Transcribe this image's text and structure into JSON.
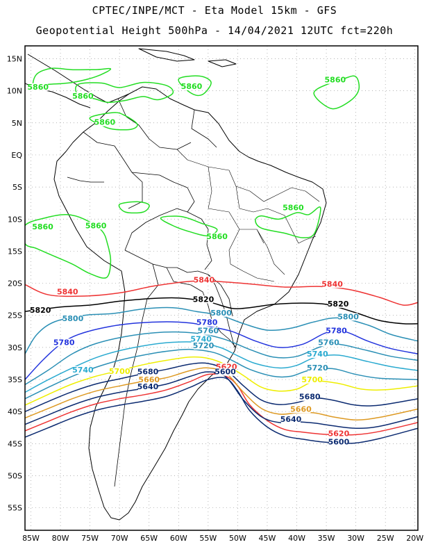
{
  "title": {
    "line1": "CPTEC/INPE/MCT -  Eta Model 15km - GFS",
    "line2": "Geopotential Height 500hPa - 14/04/2021 12UTC fct=220h"
  },
  "axes": {
    "lon_ticks": [
      "85W",
      "80W",
      "75W",
      "70W",
      "65W",
      "60W",
      "55W",
      "50W",
      "45W",
      "40W",
      "35W",
      "30W",
      "25W",
      "20W"
    ],
    "lat_ticks": [
      "15N",
      "10N",
      "5N",
      "EQ",
      "5S",
      "10S",
      "15S",
      "20S",
      "25S",
      "30S",
      "35S",
      "40S",
      "45S",
      "50S",
      "55S"
    ]
  },
  "contours": [
    {
      "value": "5860",
      "color": "#22dd22",
      "labels": [
        {
          "text": "5860",
          "lon": -83.8,
          "lat": 10.3
        },
        {
          "text": "5860",
          "lon": -76.2,
          "lat": 8.9
        },
        {
          "text": "5860",
          "lon": -72.5,
          "lat": 4.8
        },
        {
          "text": "5860",
          "lon": -57.8,
          "lat": 10.4
        },
        {
          "text": "5860",
          "lon": -33.5,
          "lat": 11.4
        },
        {
          "text": "5860",
          "lon": -83.0,
          "lat": -11.5
        },
        {
          "text": "5860",
          "lon": -74.0,
          "lat": -11.3
        },
        {
          "text": "5860",
          "lon": -53.5,
          "lat": -13.0
        },
        {
          "text": "5860",
          "lon": -40.6,
          "lat": -8.5
        }
      ]
    },
    {
      "value": "5840",
      "color": "#ee3333",
      "labels": [
        {
          "text": "5840",
          "lon": -78.8,
          "lat": -21.6
        },
        {
          "text": "5840",
          "lon": -55.7,
          "lat": -19.8
        },
        {
          "text": "5840",
          "lon": -34.0,
          "lat": -20.4
        }
      ]
    },
    {
      "value": "5820",
      "color": "#000000",
      "labels": [
        {
          "text": "5820",
          "lon": -83.4,
          "lat": -24.5
        },
        {
          "text": "5820",
          "lon": -55.8,
          "lat": -22.8
        },
        {
          "text": "5820",
          "lon": -33.0,
          "lat": -23.5
        }
      ]
    },
    {
      "value": "5800",
      "color": "#2a8fb5",
      "labels": [
        {
          "text": "5800",
          "lon": -77.9,
          "lat": -25.8
        },
        {
          "text": "5800",
          "lon": -52.8,
          "lat": -24.9
        },
        {
          "text": "5800",
          "lon": -31.3,
          "lat": -25.5
        }
      ]
    },
    {
      "value": "5780",
      "color": "#2233dd",
      "labels": [
        {
          "text": "5780",
          "lon": -79.4,
          "lat": -29.5
        },
        {
          "text": "5780",
          "lon": -55.2,
          "lat": -26.4
        },
        {
          "text": "5780",
          "lon": -33.3,
          "lat": -27.7
        }
      ]
    },
    {
      "value": "5760",
      "color": "#2a8fb5",
      "labels": [
        {
          "text": "5760",
          "lon": -55.0,
          "lat": -27.7
        },
        {
          "text": "5760",
          "lon": -34.6,
          "lat": -29.5
        }
      ]
    },
    {
      "value": "5740",
      "color": "#2aaad0",
      "labels": [
        {
          "text": "5740",
          "lon": -76.2,
          "lat": -33.8
        },
        {
          "text": "5740",
          "lon": -56.2,
          "lat": -29.0
        },
        {
          "text": "5740",
          "lon": -36.5,
          "lat": -31.3
        }
      ]
    },
    {
      "value": "5720",
      "color": "#2a8fb5",
      "labels": [
        {
          "text": "5720",
          "lon": -55.8,
          "lat": -30.0
        },
        {
          "text": "5720",
          "lon": -36.5,
          "lat": -33.5
        }
      ]
    },
    {
      "value": "5700",
      "color": "#eeee00",
      "labels": [
        {
          "text": "5700",
          "lon": -70.0,
          "lat": -34.0
        },
        {
          "text": "5700",
          "lon": -37.4,
          "lat": -35.3
        }
      ]
    },
    {
      "value": "5680",
      "color": "#0b2a70",
      "labels": [
        {
          "text": "5680",
          "lon": -65.2,
          "lat": -34.1
        },
        {
          "text": "5680",
          "lon": -37.8,
          "lat": -38.0
        }
      ]
    },
    {
      "value": "5660",
      "color": "#dd9922",
      "labels": [
        {
          "text": "5660",
          "lon": -65.0,
          "lat": -35.3
        },
        {
          "text": "5660",
          "lon": -39.3,
          "lat": -39.9
        }
      ]
    },
    {
      "value": "5640",
      "color": "#0b2a70",
      "labels": [
        {
          "text": "5640",
          "lon": -65.2,
          "lat": -36.4
        },
        {
          "text": "5640",
          "lon": -41.0,
          "lat": -41.5
        }
      ]
    },
    {
      "value": "5620",
      "color": "#ee3333",
      "labels": [
        {
          "text": "5620",
          "lon": -51.9,
          "lat": -33.3
        },
        {
          "text": "5620",
          "lon": -32.9,
          "lat": -43.7
        }
      ]
    },
    {
      "value": "5600",
      "color": "#0b2a70",
      "labels": [
        {
          "text": "5600",
          "lon": -52.1,
          "lat": -34.1
        },
        {
          "text": "5600",
          "lon": -32.9,
          "lat": -45.0
        }
      ]
    }
  ],
  "colors": {
    "frame": "#000000",
    "grid": "#999999",
    "coast": "#000000"
  }
}
